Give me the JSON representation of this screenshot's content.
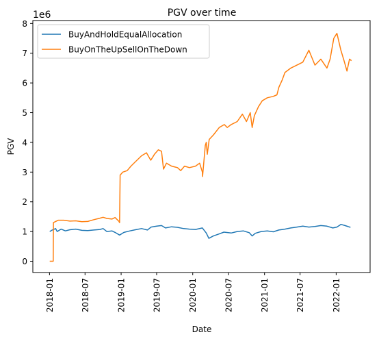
{
  "chart_data": {
    "type": "line",
    "title": "PGV over time",
    "xlabel": "Date",
    "ylabel": "PGV",
    "y_multiplier_label": "1e6",
    "ylim": [
      -0.38,
      8.1
    ],
    "y_ticks": [
      0,
      1,
      2,
      3,
      4,
      5,
      6,
      7,
      8
    ],
    "x_ticks": [
      "2018-01",
      "2018-07",
      "2019-01",
      "2019-07",
      "2020-01",
      "2020-07",
      "2021-01",
      "2021-07",
      "2022-01"
    ],
    "xlim": [
      "2017-10-08",
      "2022-06-23"
    ],
    "grid": false,
    "legend_position": "upper-left",
    "series": [
      {
        "name": "BuyAndHoldEqualAllocation",
        "color": "#1f77b4",
        "x": [
          "2018-01-02",
          "2018-01-15",
          "2018-02-01",
          "2018-02-09",
          "2018-03-01",
          "2018-03-23",
          "2018-04-15",
          "2018-05-15",
          "2018-06-15",
          "2018-07-15",
          "2018-08-15",
          "2018-09-15",
          "2018-10-01",
          "2018-10-20",
          "2018-11-15",
          "2018-12-01",
          "2018-12-24",
          "2019-01-15",
          "2019-02-15",
          "2019-03-15",
          "2019-04-15",
          "2019-05-15",
          "2019-06-03",
          "2019-07-01",
          "2019-07-26",
          "2019-08-15",
          "2019-09-15",
          "2019-10-15",
          "2019-11-15",
          "2019-12-15",
          "2020-01-15",
          "2020-02-19",
          "2020-03-10",
          "2020-03-23",
          "2020-04-15",
          "2020-05-15",
          "2020-06-08",
          "2020-07-15",
          "2020-08-15",
          "2020-09-15",
          "2020-10-15",
          "2020-10-30",
          "2020-11-15",
          "2020-12-15",
          "2021-01-15",
          "2021-02-15",
          "2021-03-15",
          "2021-04-15",
          "2021-05-15",
          "2021-06-15",
          "2021-07-15",
          "2021-08-15",
          "2021-09-15",
          "2021-10-15",
          "2021-11-15",
          "2021-12-15",
          "2022-01-05",
          "2022-01-25",
          "2022-02-15",
          "2022-03-15"
        ],
        "values": [
          1.0,
          1.05,
          1.1,
          1.0,
          1.08,
          1.02,
          1.06,
          1.08,
          1.04,
          1.03,
          1.05,
          1.07,
          1.1,
          1.0,
          1.02,
          0.97,
          0.88,
          0.97,
          1.02,
          1.06,
          1.1,
          1.05,
          1.15,
          1.18,
          1.2,
          1.12,
          1.16,
          1.14,
          1.1,
          1.08,
          1.07,
          1.12,
          0.95,
          0.77,
          0.85,
          0.92,
          0.98,
          0.95,
          1.0,
          1.02,
          0.96,
          0.85,
          0.94,
          1.0,
          1.02,
          0.99,
          1.05,
          1.08,
          1.12,
          1.15,
          1.18,
          1.15,
          1.17,
          1.2,
          1.18,
          1.12,
          1.15,
          1.24,
          1.2,
          1.14
        ]
      },
      {
        "name": "BuyOnTheUpSellOnTheDown",
        "color": "#ff7f0e",
        "x": [
          "2018-01-02",
          "2018-01-20",
          "2018-01-21",
          "2018-02-05",
          "2018-02-15",
          "2018-03-15",
          "2018-04-15",
          "2018-05-15",
          "2018-06-15",
          "2018-07-15",
          "2018-08-15",
          "2018-09-15",
          "2018-10-01",
          "2018-10-20",
          "2018-11-15",
          "2018-12-01",
          "2018-12-20",
          "2018-12-24",
          "2018-12-27",
          "2019-01-10",
          "2019-02-01",
          "2019-02-20",
          "2019-03-15",
          "2019-04-15",
          "2019-05-10",
          "2019-06-01",
          "2019-06-20",
          "2019-07-10",
          "2019-07-26",
          "2019-08-05",
          "2019-08-20",
          "2019-09-15",
          "2019-10-15",
          "2019-11-01",
          "2019-11-20",
          "2019-12-15",
          "2020-01-15",
          "2020-02-05",
          "2020-02-19",
          "2020-02-20",
          "2020-03-05",
          "2020-03-10",
          "2020-03-15",
          "2020-03-25",
          "2020-04-15",
          "2020-05-15",
          "2020-06-10",
          "2020-06-25",
          "2020-07-15",
          "2020-08-15",
          "2020-09-10",
          "2020-10-01",
          "2020-10-20",
          "2020-10-30",
          "2020-11-10",
          "2020-12-01",
          "2020-12-20",
          "2021-01-15",
          "2021-02-15",
          "2021-03-05",
          "2021-03-15",
          "2021-04-01",
          "2021-04-15",
          "2021-05-15",
          "2021-06-15",
          "2021-07-15",
          "2021-08-15",
          "2021-09-15",
          "2021-10-15",
          "2021-11-15",
          "2021-12-01",
          "2021-12-20",
          "2022-01-05",
          "2022-01-25",
          "2022-02-10",
          "2022-02-25",
          "2022-03-10",
          "2022-03-20"
        ],
        "values": [
          0.0,
          0.0,
          1.3,
          1.35,
          1.38,
          1.38,
          1.35,
          1.36,
          1.33,
          1.34,
          1.4,
          1.45,
          1.48,
          1.44,
          1.42,
          1.47,
          1.35,
          1.3,
          2.9,
          3.0,
          3.05,
          3.2,
          3.35,
          3.55,
          3.65,
          3.4,
          3.6,
          3.75,
          3.7,
          3.1,
          3.3,
          3.2,
          3.15,
          3.05,
          3.2,
          3.15,
          3.2,
          3.3,
          3.0,
          2.85,
          3.9,
          4.0,
          3.6,
          4.1,
          4.25,
          4.5,
          4.6,
          4.5,
          4.6,
          4.7,
          4.95,
          4.7,
          5.0,
          4.5,
          4.9,
          5.2,
          5.4,
          5.5,
          5.55,
          5.6,
          5.85,
          6.1,
          6.35,
          6.5,
          6.6,
          6.7,
          7.1,
          6.6,
          6.8,
          6.5,
          6.8,
          7.5,
          7.67,
          7.1,
          6.75,
          6.4,
          6.8,
          6.75
        ]
      }
    ]
  }
}
